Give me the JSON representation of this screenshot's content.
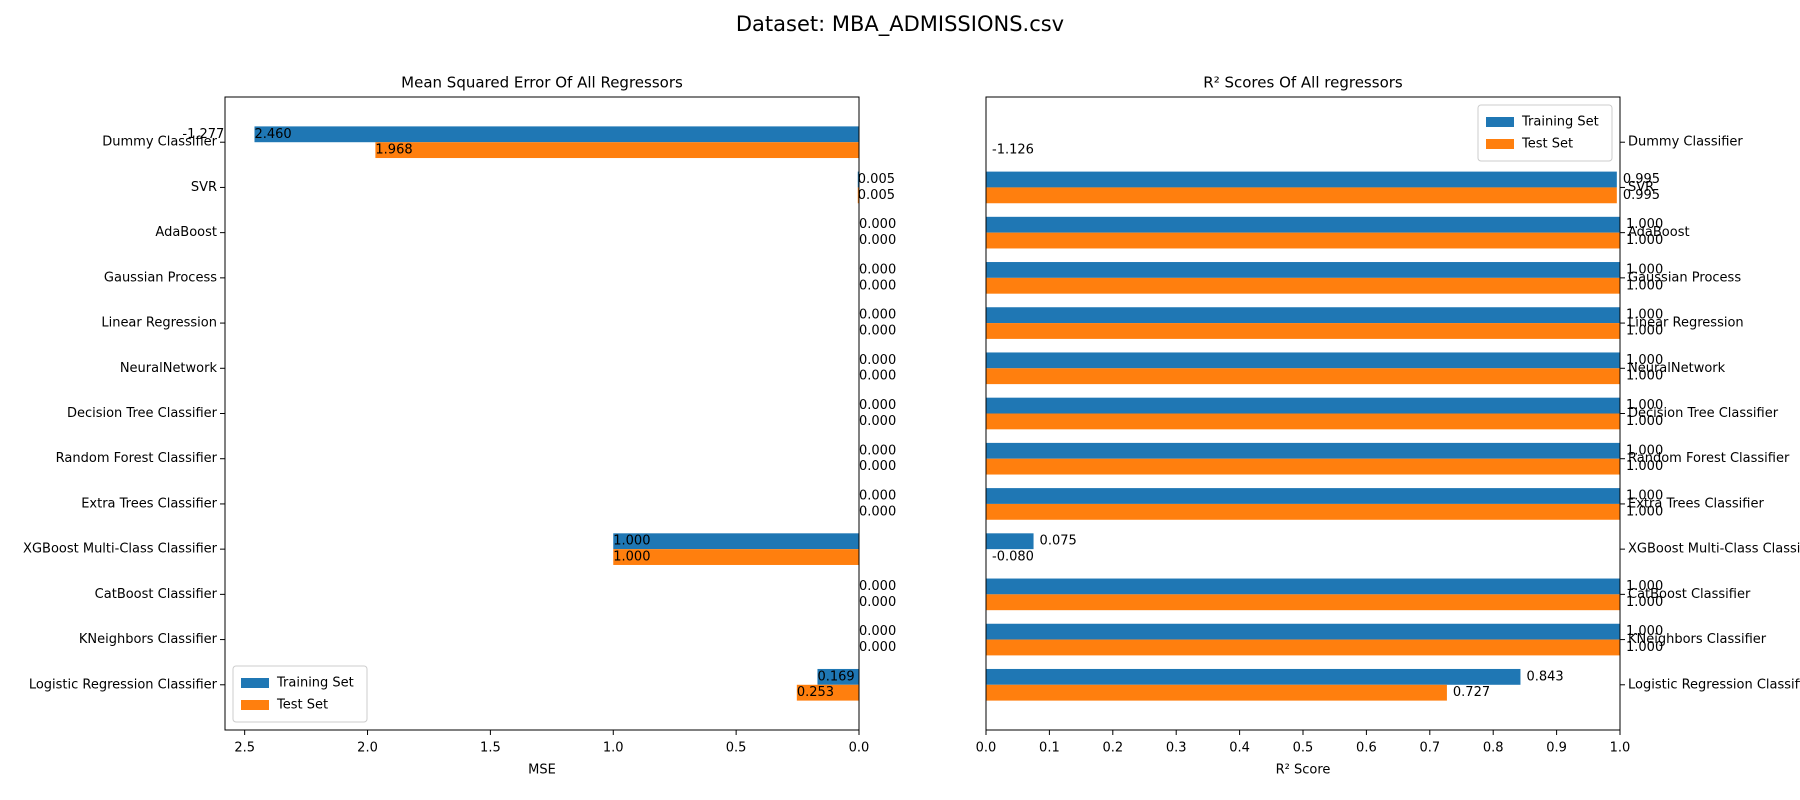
{
  "suptitle": "Dataset: MBA_ADMISSIONS.csv",
  "chart_data": [
    {
      "type": "bar",
      "orientation": "horizontal",
      "title": "Mean Squared Error Of All Regressors",
      "x_label": "MSE",
      "categories": [
        "Dummy Classifier",
        "SVR",
        "AdaBoost",
        "Gaussian Process",
        "Linear Regression",
        "NeuralNetwork",
        "Decision Tree Classifier",
        "Random Forest Classifier",
        "Extra Trees Classifier",
        "XGBoost Multi-Class Classifier",
        "CatBoost Classifier",
        "KNeighbors Classifier",
        "Logistic Regression Classifier"
      ],
      "series": [
        {
          "name": "Training Set",
          "color": "#1f77b4",
          "values": [
            2.46,
            0.005,
            0,
            0,
            0,
            0,
            0,
            0,
            0,
            1,
            0,
            0,
            0.169
          ],
          "value_labels": [
            "2.460",
            "0.005",
            "0.000",
            "0.000",
            "0.000",
            "0.000",
            "0.000",
            "0.000",
            "0.000",
            "1.000",
            "0.000",
            "0.000",
            "0.169"
          ]
        },
        {
          "name": "Test Set",
          "color": "#ff7f0e",
          "values": [
            1.968,
            0.005,
            0,
            0,
            0,
            0,
            0,
            0,
            0,
            1,
            0,
            0,
            0.253
          ],
          "value_labels": [
            "1.968",
            "0.005",
            "0.000",
            "0.000",
            "0.000",
            "0.000",
            "0.000",
            "0.000",
            "0.000",
            "1.000",
            "0.000",
            "0.000",
            "0.253"
          ]
        }
      ],
      "xlim": [
        2.58,
        0
      ],
      "xticks": [
        2.5,
        {
          "value": 2,
          "label": "2.0"
        },
        1.5,
        {
          "value": 1,
          "label": "1.0"
        },
        0.5,
        {
          "value": 0,
          "label": "0.0"
        }
      ],
      "category_axis": "left",
      "legend": "lower left"
    },
    {
      "type": "bar",
      "orientation": "horizontal",
      "title": "R² Scores Of All regressors",
      "x_label": "R² Score",
      "categories": [
        "Dummy Classifier",
        "SVR",
        "AdaBoost",
        "Gaussian Process",
        "Linear Regression",
        "NeuralNetwork",
        "Decision Tree Classifier",
        "Random Forest Classifier",
        "Extra Trees Classifier",
        "XGBoost Multi-Class Classifier",
        "CatBoost Classifier",
        "KNeighbors Classifier",
        "Logistic Regression Classifier"
      ],
      "series": [
        {
          "name": "Training Set",
          "color": "#1f77b4",
          "values": [
            -1.277,
            0.995,
            1,
            1,
            1,
            1,
            1,
            1,
            1,
            0.075,
            1,
            1,
            0.843
          ],
          "value_labels": [
            "-1.277",
            "0.995",
            "1.000",
            "1.000",
            "1.000",
            "1.000",
            "1.000",
            "1.000",
            "1.000",
            "0.075",
            "1.000",
            "1.000",
            "0.843"
          ]
        },
        {
          "name": "Test Set",
          "color": "#ff7f0e",
          "values": [
            -1.126,
            0.995,
            1,
            1,
            1,
            1,
            1,
            1,
            1,
            -0.08,
            1,
            1,
            0.727
          ],
          "value_labels": [
            "-1.126",
            "0.995",
            "1.000",
            "1.000",
            "1.000",
            "1.000",
            "1.000",
            "1.000",
            "1.000",
            "-0.080",
            "1.000",
            "1.000",
            "0.727"
          ]
        }
      ],
      "xlim": [
        0,
        1
      ],
      "xticks": [
        {
          "value": 0,
          "label": "0.0"
        },
        0.1,
        0.2,
        0.3,
        0.4,
        0.5,
        0.6,
        0.7,
        0.8,
        0.9,
        {
          "value": 1,
          "label": "1.0"
        }
      ],
      "category_axis": "right",
      "legend": "upper right"
    }
  ]
}
